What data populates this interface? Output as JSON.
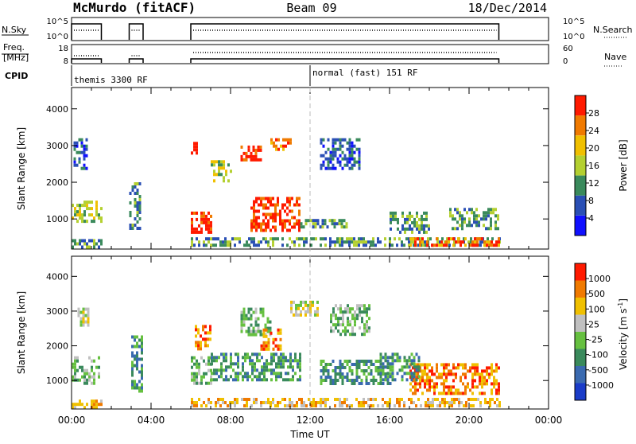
{
  "header": {
    "station": "McMurdo (fitACF)",
    "beam": "Beam 09",
    "date": "18/Dec/2014"
  },
  "params": {
    "nsky_label": "N.Sky",
    "nsky_ticks": [
      "10^5",
      "10^0"
    ],
    "nsearch_label": "N.Search",
    "nsearch_ticks": [
      "10^5",
      "10^0"
    ],
    "freq_label_1": "Freq.",
    "freq_label_2": "[MHz]",
    "freq_ticks": [
      "18",
      "8"
    ],
    "nave_label": "Nave",
    "nave_ticks": [
      "60",
      "0"
    ],
    "cpid_label": "CPID",
    "cpid_1": "themis 3300 RF",
    "cpid_2": "normal (fast) 151 RF"
  },
  "chart_data": [
    {
      "type": "heatmap",
      "name": "power",
      "ylabel": "Slant Range [km]",
      "xlabel": "",
      "x_ticks": [
        "00:00",
        "04:00",
        "08:00",
        "12:00",
        "16:00",
        "20:00",
        "00:00"
      ],
      "xlim_hours": [
        0,
        24
      ],
      "y_ticks": [
        1000,
        2000,
        3000,
        4000
      ],
      "ylim": [
        180,
        4580
      ],
      "colorbar": {
        "label": "Power [dB]",
        "ticks": [
          "28",
          "24",
          "20",
          "16",
          "12",
          "8",
          "4"
        ],
        "colors": [
          "#1010ff",
          "#2a4fb5",
          "#3a8a5c",
          "#b4d030",
          "#f0c000",
          "#f07a00",
          "#ff1a00"
        ]
      },
      "patches": [
        {
          "t0": 0.0,
          "t1": 1.5,
          "r0": 900,
          "r1": 1500,
          "level": 3
        },
        {
          "t0": 0.0,
          "t1": 1.5,
          "r0": 250,
          "r1": 450,
          "level": 2
        },
        {
          "t0": 0.1,
          "t1": 0.8,
          "r0": 2400,
          "r1": 3200,
          "level": 1
        },
        {
          "t0": 2.9,
          "t1": 3.5,
          "r0": 700,
          "r1": 2000,
          "level": 2
        },
        {
          "t0": 6.0,
          "t1": 7.0,
          "r0": 600,
          "r1": 1200,
          "level": 6
        },
        {
          "t0": 6.0,
          "t1": 6.3,
          "r0": 2800,
          "r1": 3100,
          "level": 6
        },
        {
          "t0": 7.0,
          "t1": 8.0,
          "r0": 2000,
          "r1": 2600,
          "level": 3
        },
        {
          "t0": 8.5,
          "t1": 9.5,
          "r0": 2600,
          "r1": 3000,
          "level": 6
        },
        {
          "t0": 9.0,
          "t1": 11.5,
          "r0": 700,
          "r1": 1600,
          "level": 6
        },
        {
          "t0": 10.0,
          "t1": 11.0,
          "r0": 2900,
          "r1": 3200,
          "level": 5
        },
        {
          "t0": 11.5,
          "t1": 14.0,
          "r0": 800,
          "r1": 1000,
          "level": 2
        },
        {
          "t0": 6.0,
          "t1": 21.5,
          "r0": 300,
          "r1": 500,
          "level": 2
        },
        {
          "t0": 12.5,
          "t1": 14.5,
          "r0": 2400,
          "r1": 3200,
          "level": 1
        },
        {
          "t0": 16.0,
          "t1": 18.0,
          "r0": 600,
          "r1": 1200,
          "level": 2
        },
        {
          "t0": 17.0,
          "t1": 21.5,
          "r0": 300,
          "r1": 500,
          "level": 5
        },
        {
          "t0": 19.0,
          "t1": 21.5,
          "r0": 700,
          "r1": 1300,
          "level": 2
        }
      ]
    },
    {
      "type": "heatmap",
      "name": "velocity",
      "ylabel": "Slant Range [km]",
      "xlabel": "Time UT",
      "x_ticks": [
        "00:00",
        "04:00",
        "08:00",
        "12:00",
        "16:00",
        "20:00",
        "00:00"
      ],
      "xlim_hours": [
        0,
        24
      ],
      "y_ticks": [
        1000,
        2000,
        3000,
        4000
      ],
      "ylim": [
        180,
        4580
      ],
      "colorbar": {
        "label": "Velocity [m s",
        "label_sup": "-1",
        "label_end": "]",
        "ticks": [
          "1000",
          "500",
          "100",
          "25",
          "-25",
          "-100",
          "-500",
          "-1000"
        ],
        "colors": [
          "#1a3cc8",
          "#3a6ab0",
          "#3a8a5c",
          "#66c040",
          "#c0c0c0",
          "#f0c000",
          "#f07a00",
          "#ff1a00"
        ]
      },
      "patches": [
        {
          "t0": 0.0,
          "t1": 1.4,
          "r0": 900,
          "r1": 1700,
          "level": 3
        },
        {
          "t0": 0.3,
          "t1": 0.8,
          "r0": 2600,
          "r1": 3100,
          "level": 4
        },
        {
          "t0": 0.0,
          "t1": 1.5,
          "r0": 250,
          "r1": 450,
          "level": 5
        },
        {
          "t0": 3.0,
          "t1": 3.6,
          "r0": 700,
          "r1": 2300,
          "level": 2
        },
        {
          "t0": 6.2,
          "t1": 7.0,
          "r0": 1900,
          "r1": 2600,
          "level": 6
        },
        {
          "t0": 6.0,
          "t1": 7.0,
          "r0": 900,
          "r1": 1700,
          "level": 3
        },
        {
          "t0": 7.0,
          "t1": 11.5,
          "r0": 1000,
          "r1": 1800,
          "level": 2
        },
        {
          "t0": 8.5,
          "t1": 10.0,
          "r0": 2300,
          "r1": 3100,
          "level": 3
        },
        {
          "t0": 9.5,
          "t1": 10.5,
          "r0": 1900,
          "r1": 2500,
          "level": 6
        },
        {
          "t0": 11.0,
          "t1": 12.5,
          "r0": 2900,
          "r1": 3300,
          "level": 4
        },
        {
          "t0": 12.5,
          "t1": 16.0,
          "r0": 900,
          "r1": 1600,
          "level": 2
        },
        {
          "t0": 13.0,
          "t1": 15.0,
          "r0": 2300,
          "r1": 3200,
          "level": 3
        },
        {
          "t0": 6.0,
          "t1": 21.5,
          "r0": 300,
          "r1": 500,
          "level": 5
        },
        {
          "t0": 17.0,
          "t1": 21.5,
          "r0": 600,
          "r1": 1500,
          "level": 6
        },
        {
          "t0": 15.5,
          "t1": 17.5,
          "r0": 1000,
          "r1": 1800,
          "level": 2
        }
      ]
    }
  ]
}
